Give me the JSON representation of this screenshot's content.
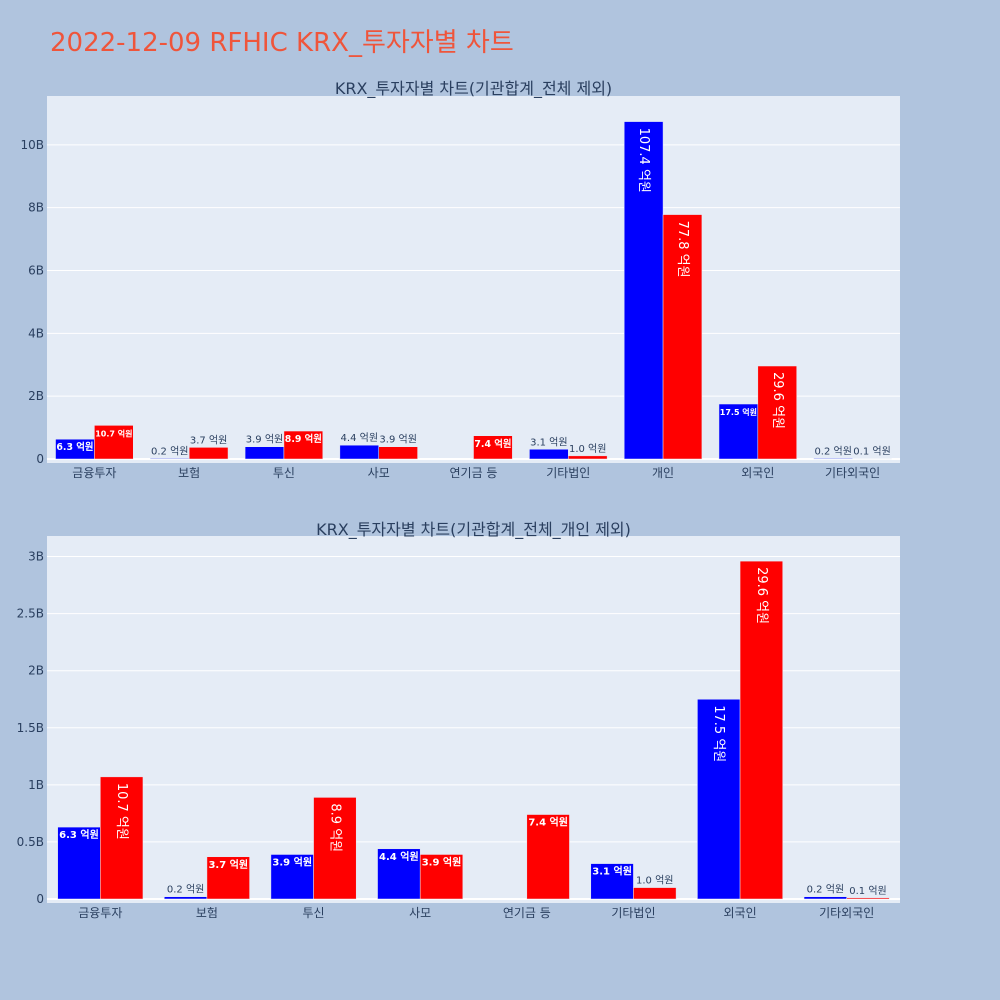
{
  "page": {
    "title": "2022-12-09 RFHIC KRX_투자자별 차트"
  },
  "chart_data": [
    {
      "type": "bar",
      "title": "KRX_투자자별 차트(기관합계_전체 제외)",
      "categories": [
        "금융투자",
        "보험",
        "투신",
        "사모",
        "연기금 등",
        "기타법인",
        "개인",
        "외국인",
        "기타외국인"
      ],
      "series": [
        {
          "color": "#0000ff",
          "values": [
            630000000,
            20000000,
            390000000,
            440000000,
            0,
            310000000,
            10740000000,
            1750000000,
            20000000
          ],
          "labels": [
            "6.3 억원",
            "0.2 억원",
            "3.9 억원",
            "4.4 억원",
            "",
            "3.1 억원",
            "107.4 억원",
            "17.5 억원",
            "0.2 억원"
          ]
        },
        {
          "color": "#ff0000",
          "values": [
            1070000000,
            370000000,
            890000000,
            390000000,
            740000000,
            100000000,
            7780000000,
            2960000000,
            10000000
          ],
          "labels": [
            "10.7 억원",
            "3.7 억원",
            "8.9 억원",
            "3.9 억원",
            "7.4 억원",
            "1.0 억원",
            "77.8 억원",
            "29.6 억원",
            "0.1 억원"
          ]
        }
      ],
      "yticks": [
        0,
        2000000000,
        4000000000,
        6000000000,
        8000000000,
        10000000000
      ],
      "ytick_labels": [
        "0",
        "2B",
        "4B",
        "6B",
        "8B",
        "10B"
      ],
      "ylim": [
        0,
        11300000000
      ],
      "grid": true
    },
    {
      "type": "bar",
      "title": "KRX_투자자별 차트(기관합계_전체_개인 제외)",
      "categories": [
        "금융투자",
        "보험",
        "투신",
        "사모",
        "연기금 등",
        "기타법인",
        "외국인",
        "기타외국인"
      ],
      "series": [
        {
          "color": "#0000ff",
          "values": [
            630000000,
            20000000,
            390000000,
            440000000,
            0,
            310000000,
            1750000000,
            20000000
          ],
          "labels": [
            "6.3 억원",
            "0.2 억원",
            "3.9 억원",
            "4.4 억원",
            "",
            "3.1 억원",
            "17.5 억원",
            "0.2 억원"
          ]
        },
        {
          "color": "#ff0000",
          "values": [
            1070000000,
            370000000,
            890000000,
            390000000,
            740000000,
            100000000,
            2960000000,
            10000000
          ],
          "labels": [
            "10.7 억원",
            "3.7 억원",
            "8.9 억원",
            "3.9 억원",
            "7.4 억원",
            "1.0 억원",
            "29.6 억원",
            "0.1 억원"
          ]
        }
      ],
      "yticks": [
        0,
        500000000,
        1000000000,
        1500000000,
        2000000000,
        2500000000,
        3000000000
      ],
      "ytick_labels": [
        "0",
        "0.5B",
        "1B",
        "1.5B",
        "2B",
        "2.5B",
        "3B"
      ],
      "ylim": [
        0,
        3110000000
      ],
      "grid": true
    }
  ]
}
